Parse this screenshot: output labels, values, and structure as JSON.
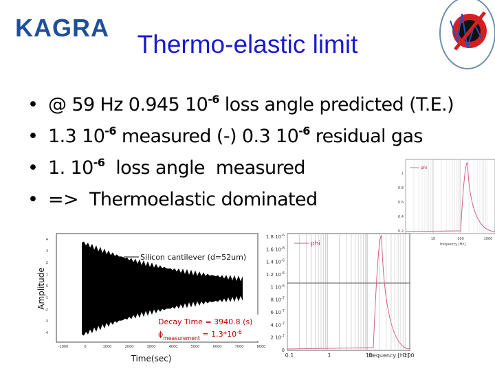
{
  "logo": {
    "text": "KAGRA"
  },
  "title": "Thermo-elastic limit",
  "bullets": [
    [
      {
        "text": "@ 59 Hz 0.945 10"
      },
      {
        "sup": "-6"
      },
      {
        "text": " loss angle predicted (T.E.)"
      }
    ],
    [
      {
        "text": "1.3 10"
      },
      {
        "sup": "-6"
      },
      {
        "text": " measured (-) 0.3 10"
      },
      {
        "sup": "-6"
      },
      {
        "text": " residual gas"
      }
    ],
    [
      {
        "text": "1. 10"
      },
      {
        "sup": "-6"
      },
      {
        "text": "  loss angle  measured"
      }
    ],
    [
      {
        "text": "=>  Thermoelastic dominated"
      }
    ]
  ],
  "decay_plot": {
    "y_axis_label": "Amplitude",
    "x_axis_label": "Time(sec)",
    "legend": "Silicon cantilever (d=52um)",
    "decay_time": "Decay Time = 3940.8 (s)",
    "phi": [
      {
        "text": "ϕ"
      },
      {
        "sub": "measurement"
      },
      {
        "text": " = 1.3*10"
      },
      {
        "sup": "-6"
      }
    ],
    "xticks": [
      "-1000",
      "0",
      "1000",
      "2000",
      "3000",
      "4000",
      "5000",
      "6000",
      "7000",
      "8000"
    ],
    "yticks": [
      "4",
      "3",
      "2",
      "1",
      "0",
      "-1",
      "-2",
      "-3",
      "-4"
    ]
  },
  "phi_plot": {
    "legend": "phi",
    "x_axis_label": "frequency [Hz]",
    "xticks": [
      "0.1",
      "1",
      "10",
      "100"
    ],
    "yticks": [
      [
        {
          "text": "1.8 10"
        },
        {
          "sup": "-6"
        }
      ],
      [
        {
          "text": "1.6 10"
        },
        {
          "sup": "-6"
        }
      ],
      [
        {
          "text": "1.4 10"
        },
        {
          "sup": "-6"
        }
      ],
      [
        {
          "text": "1.2 10"
        },
        {
          "sup": "-6"
        }
      ],
      [
        {
          "text": "1 10"
        },
        {
          "sup": "-6"
        }
      ],
      [
        {
          "text": "8 10"
        },
        {
          "sup": "-7"
        }
      ],
      [
        {
          "text": "6 10"
        },
        {
          "sup": "-7"
        }
      ],
      [
        {
          "text": "4 10"
        },
        {
          "sup": "-7"
        }
      ],
      [
        {
          "text": "2 10"
        },
        {
          "sup": "-7"
        }
      ],
      [
        {
          "text": "0"
        }
      ]
    ]
  },
  "small_plot": {
    "legend": "phi",
    "x_axis_label": "frequency [Hz]",
    "xticks": [
      "1",
      "10",
      "100",
      "1000"
    ],
    "yticks": [
      "1",
      "0.8",
      "0.6",
      "0.4",
      "0.2"
    ]
  }
}
